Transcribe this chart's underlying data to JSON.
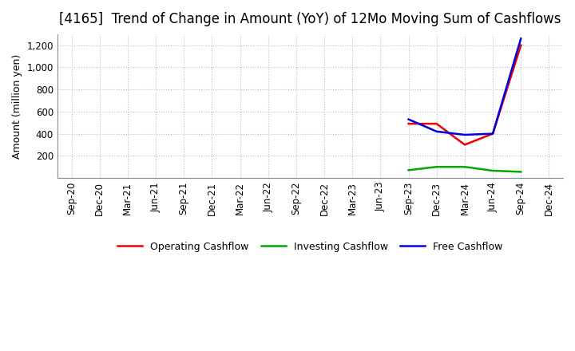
{
  "title": "[4165]  Trend of Change in Amount (YoY) of 12Mo Moving Sum of Cashflows",
  "ylabel": "Amount (million yen)",
  "ylim": [
    0,
    1300
  ],
  "yticks": [
    0,
    200,
    400,
    600,
    800,
    1000,
    1200
  ],
  "background_color": "#ffffff",
  "grid_color": "#bbbbbb",
  "x_labels": [
    "Sep-20",
    "Dec-20",
    "Mar-21",
    "Jun-21",
    "Sep-21",
    "Dec-21",
    "Mar-22",
    "Jun-22",
    "Sep-22",
    "Dec-22",
    "Mar-23",
    "Jun-23",
    "Sep-23",
    "Dec-23",
    "Mar-24",
    "Jun-24",
    "Sep-24",
    "Dec-24"
  ],
  "operating": [
    null,
    null,
    null,
    null,
    null,
    null,
    null,
    null,
    null,
    null,
    null,
    null,
    490,
    490,
    300,
    400,
    1200,
    null
  ],
  "investing": [
    null,
    null,
    null,
    null,
    null,
    null,
    null,
    null,
    null,
    null,
    null,
    null,
    70,
    100,
    100,
    65,
    55,
    null
  ],
  "free": [
    null,
    null,
    null,
    null,
    null,
    null,
    null,
    null,
    null,
    null,
    null,
    null,
    530,
    420,
    390,
    400,
    1260,
    null
  ],
  "line_colors": {
    "operating": "#ee0000",
    "investing": "#00aa00",
    "free": "#0000dd"
  },
  "legend_labels": {
    "operating": "Operating Cashflow",
    "investing": "Investing Cashflow",
    "free": "Free Cashflow"
  },
  "title_fontsize": 12,
  "axis_fontsize": 9,
  "tick_fontsize": 8.5
}
